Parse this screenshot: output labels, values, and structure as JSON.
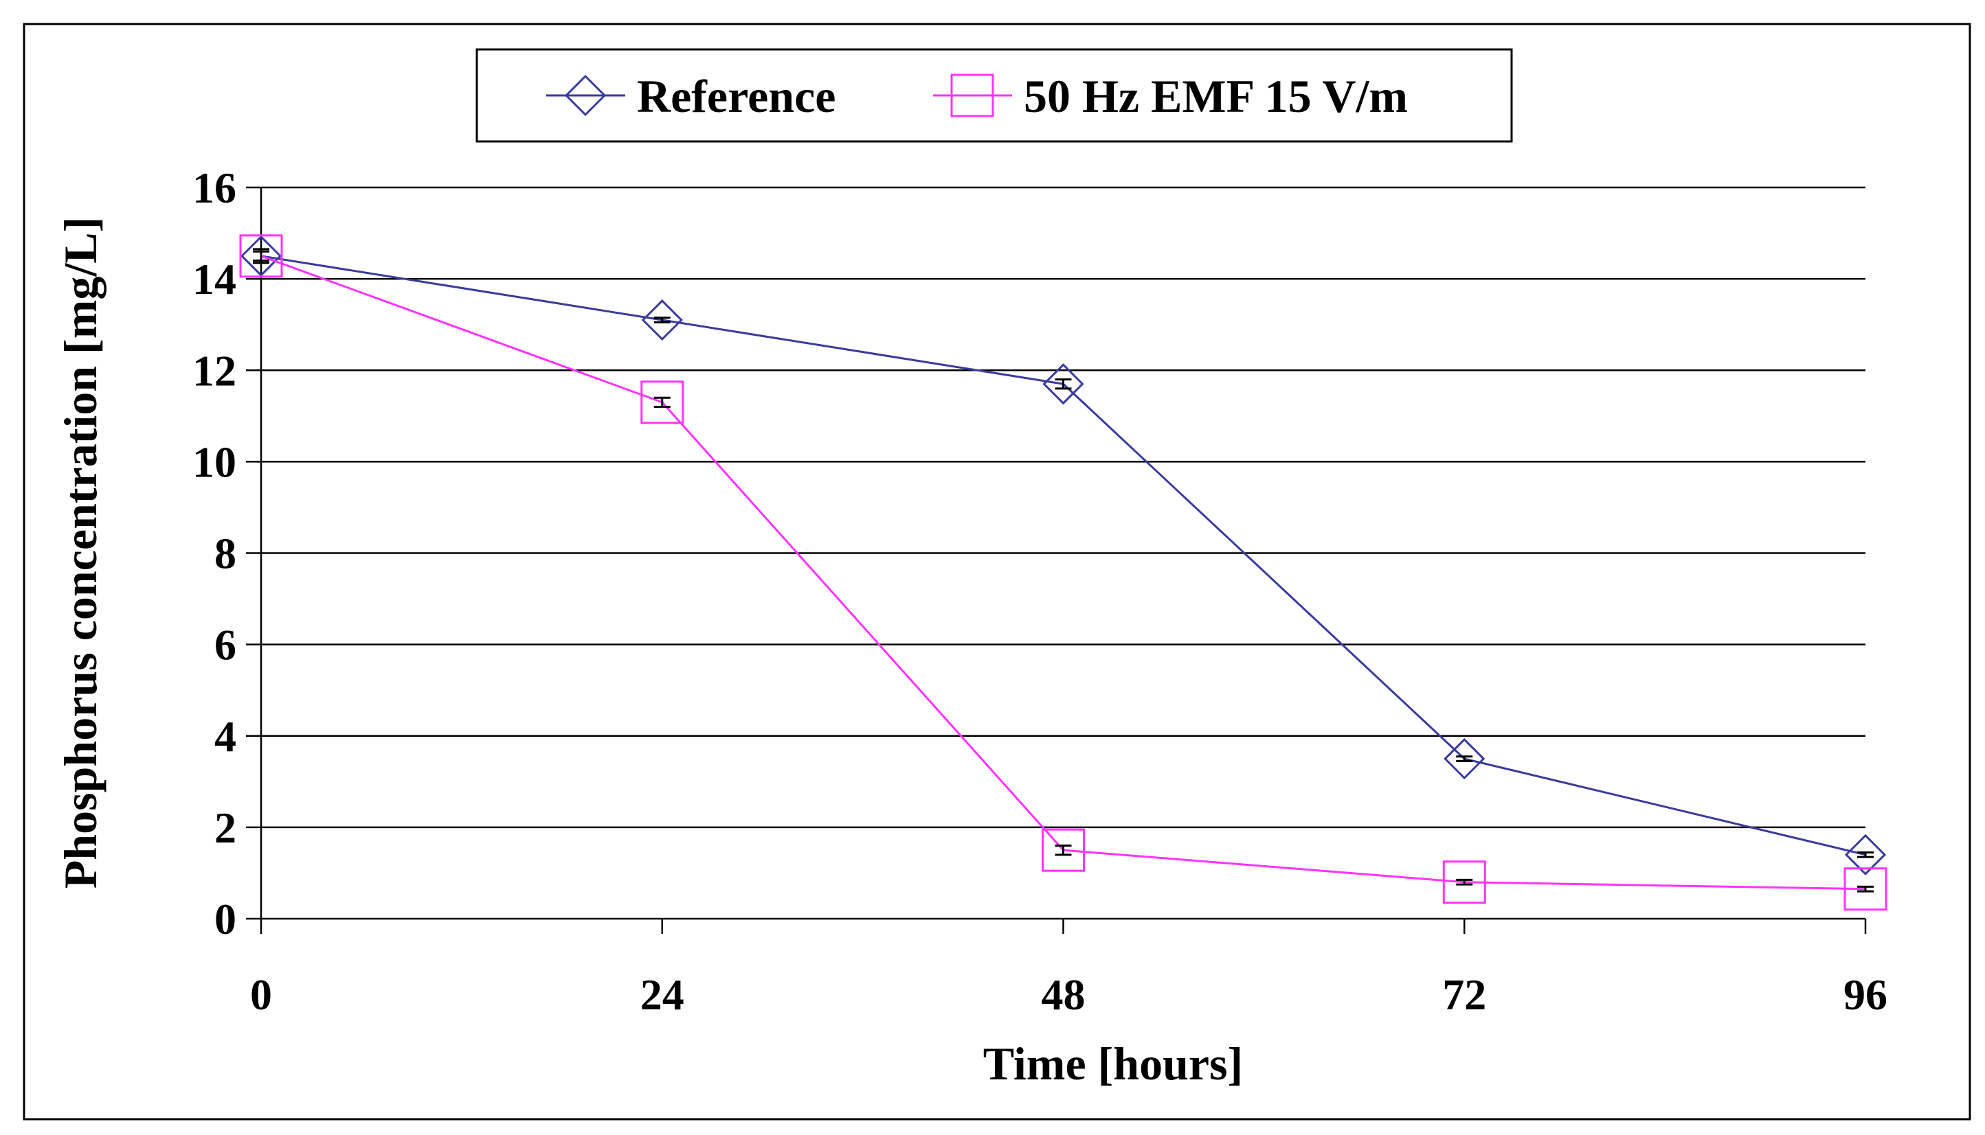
{
  "chart_data": {
    "type": "line",
    "title": "",
    "xlabel": "Time [hours]",
    "ylabel": "Phosphorus concentration [mg/L]",
    "x": [
      0,
      24,
      48,
      72,
      96
    ],
    "xticks": [
      "0",
      "24",
      "48",
      "72",
      "96"
    ],
    "yticks": [
      "0",
      "2",
      "4",
      "6",
      "8",
      "10",
      "12",
      "14",
      "16"
    ],
    "xlim": [
      0,
      96
    ],
    "ylim": [
      0,
      16
    ],
    "grid": "horizontal",
    "legend_position": "top-center",
    "series": [
      {
        "name": "Reference",
        "marker": "diamond",
        "color": "#3A3A9E",
        "values": [
          14.5,
          13.1,
          11.7,
          3.5,
          1.4
        ],
        "errors": [
          0.15,
          0.05,
          0.1,
          0.05,
          0.05
        ]
      },
      {
        "name": "50 Hz EMF 15 V/m",
        "marker": "square",
        "color": "#FF33FF",
        "values": [
          14.5,
          11.3,
          1.5,
          0.8,
          0.65
        ],
        "errors": [
          0.1,
          0.1,
          0.1,
          0.05,
          0.05
        ]
      }
    ]
  }
}
